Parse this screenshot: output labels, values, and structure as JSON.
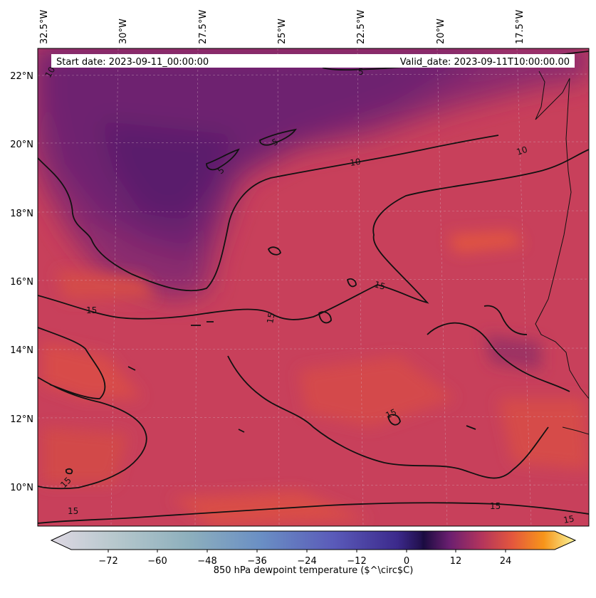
{
  "header": {
    "start_date": "Start date: 2023-09-11_00:00:00",
    "valid_date": "Valid_date: 2023-09-11T10:00:00.00"
  },
  "lon_labels": [
    "32.5°W",
    "30°W",
    "27.5°W",
    "25°W",
    "22.5°W",
    "20°W",
    "17.5°W"
  ],
  "lat_labels": [
    "22°N",
    "20°N",
    "18°N",
    "16°N",
    "14°N",
    "12°N",
    "10°N"
  ],
  "contour_labels": [
    "10",
    "5",
    "5",
    "5",
    "10",
    "10",
    "15",
    "15",
    "15",
    "15",
    "15",
    "15",
    "15",
    "15"
  ],
  "colorbar": {
    "label": "850 hPa dewpoint temperature ($^\\circ$C)",
    "ticks": [
      "−72",
      "−60",
      "−48",
      "−36",
      "−24",
      "−12",
      "0",
      "12",
      "24"
    ]
  },
  "colors": {
    "background": "#c8405b",
    "dry_purple": "#5e1a6e",
    "moist_orange": "#e2543f",
    "contour": "#111111"
  }
}
